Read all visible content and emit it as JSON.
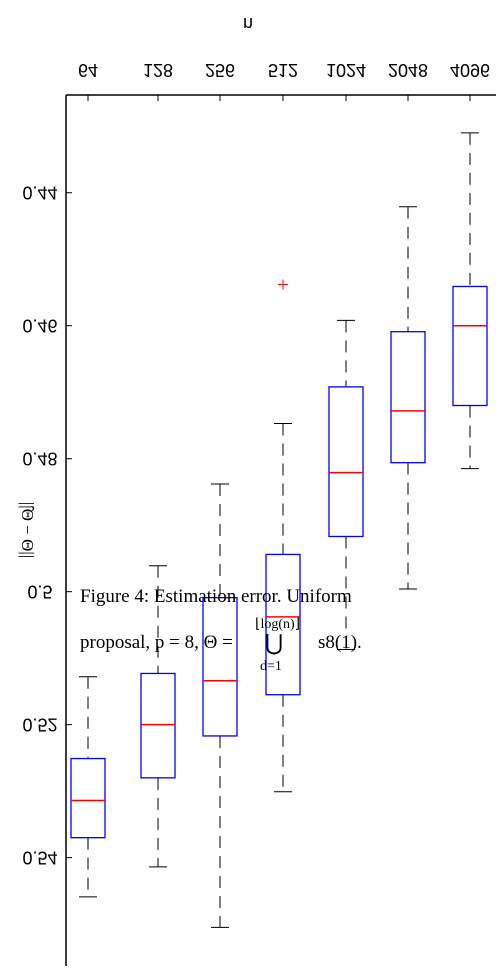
{
  "chart_data": {
    "type": "boxplot",
    "xlabel": "n",
    "ylabel": "||Θ − Θ̂||",
    "categories": [
      "64",
      "128",
      "256",
      "512",
      "1024",
      "2048",
      "4096"
    ],
    "boxes": [
      {
        "low": 0.5128,
        "q1": 0.5251,
        "median": 0.5314,
        "q3": 0.537,
        "high": 0.5459,
        "outliers": []
      },
      {
        "low": 0.4961,
        "q1": 0.5123,
        "median": 0.52,
        "q3": 0.528,
        "high": 0.5414,
        "outliers": []
      },
      {
        "low": 0.4838,
        "q1": 0.5009,
        "median": 0.5134,
        "q3": 0.5217,
        "high": 0.5505,
        "outliers": []
      },
      {
        "low": 0.4747,
        "q1": 0.4944,
        "median": 0.5038,
        "q3": 0.5155,
        "high": 0.5301,
        "outliers": [
          0.4538
        ]
      },
      {
        "low": 0.4592,
        "q1": 0.4692,
        "median": 0.4821,
        "q3": 0.4917,
        "high": 0.5087,
        "outliers": []
      },
      {
        "low": 0.4421,
        "q1": 0.4609,
        "median": 0.4728,
        "q3": 0.4806,
        "high": 0.4996,
        "outliers": []
      },
      {
        "low": 0.431,
        "q1": 0.4541,
        "median": 0.46,
        "q3": 0.472,
        "high": 0.4815,
        "outliers": []
      }
    ],
    "box_color": "#0000ff",
    "median_color": "#ff0000",
    "whisker_color": "#000000",
    "outlier_color": "#ff0000",
    "ylim": [
      0.4253,
      0.5563
    ],
    "y_inverted": true,
    "yticks": [
      0.44,
      0.46,
      0.48,
      0.5,
      0.52,
      0.54
    ],
    "caption": {
      "line1": "Figure 4: Estimation error. Uniform",
      "line2": "proposal, p = 8, Θ =",
      "union_top": "⌊log(n)⌋",
      "union_symbol": "⋃",
      "union_bottom": "d=1",
      "set": "s8(1)."
    }
  }
}
